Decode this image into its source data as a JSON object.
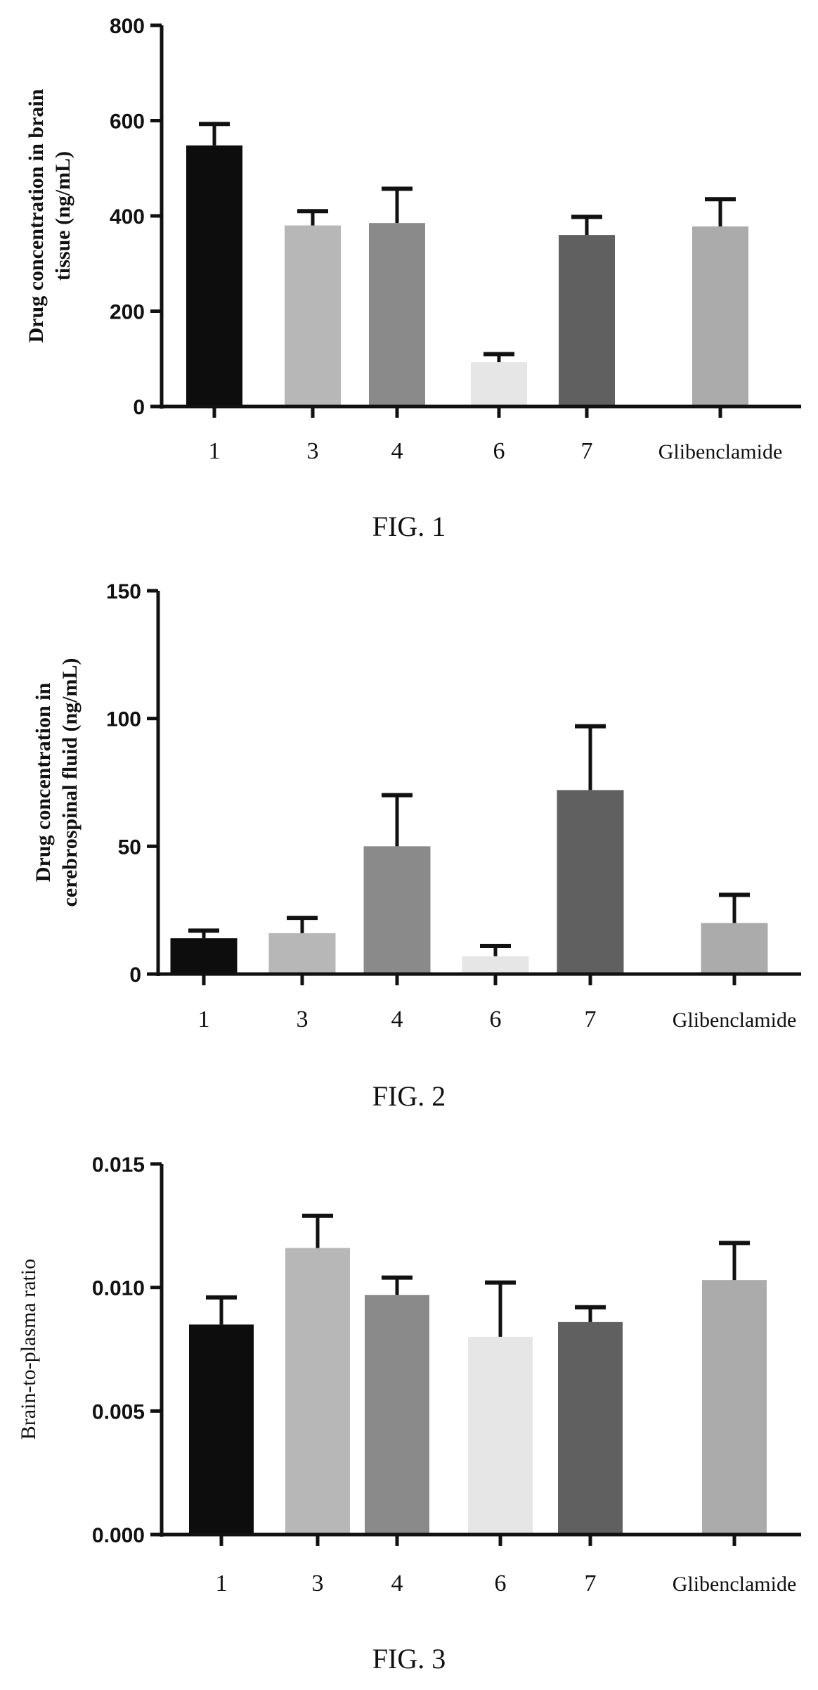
{
  "chart_data": [
    {
      "type": "bar",
      "caption": "FIG. 1",
      "ylabel": [
        "Drug concentration in brain",
        "tissue (ng/mL)"
      ],
      "ylabel_bold": true,
      "categories": [
        "1",
        "3",
        "4",
        "6",
        "7",
        "Glibenclamide"
      ],
      "values": [
        548,
        380,
        385,
        93,
        360,
        378
      ],
      "errors": [
        45,
        30,
        72,
        17,
        38,
        57
      ],
      "bar_colors": [
        "#0d0d0d",
        "#b7b7b7",
        "#8a8a8a",
        "#e6e6e6",
        "#606060",
        "#ababab"
      ],
      "ylim": [
        0,
        800
      ],
      "yticks": [
        "0",
        "200",
        "400",
        "600",
        "800"
      ]
    },
    {
      "type": "bar",
      "caption": "FIG. 2",
      "ylabel": [
        "Drug concentration in",
        "cerebrospinal fluid (ng/mL)"
      ],
      "ylabel_bold": true,
      "categories": [
        "1",
        "3",
        "4",
        "6",
        "7",
        "Glibenclamide"
      ],
      "values": [
        14,
        16,
        50,
        7,
        72,
        20
      ],
      "errors": [
        3,
        6,
        20,
        4,
        25,
        11
      ],
      "bar_colors": [
        "#0d0d0d",
        "#b7b7b7",
        "#8a8a8a",
        "#e6e6e6",
        "#606060",
        "#ababab"
      ],
      "ylim": [
        0,
        150
      ],
      "yticks": [
        "0",
        "50",
        "100",
        "150"
      ]
    },
    {
      "type": "bar",
      "caption": "FIG. 3",
      "ylabel": [
        "Brain-to-plasma ratio"
      ],
      "ylabel_bold": false,
      "categories": [
        "1",
        "3",
        "4",
        "6",
        "7",
        "Glibenclamide"
      ],
      "values": [
        0.0085,
        0.0116,
        0.0097,
        0.008,
        0.0086,
        0.0103
      ],
      "errors": [
        0.0011,
        0.0013,
        0.0007,
        0.0022,
        0.0006,
        0.0015
      ],
      "bar_colors": [
        "#0d0d0d",
        "#b7b7b7",
        "#8a8a8a",
        "#e6e6e6",
        "#606060",
        "#ababab"
      ],
      "ylim": [
        0,
        0.015
      ],
      "yticks": [
        "0.000",
        "0.005",
        "0.010",
        "0.015"
      ]
    }
  ]
}
